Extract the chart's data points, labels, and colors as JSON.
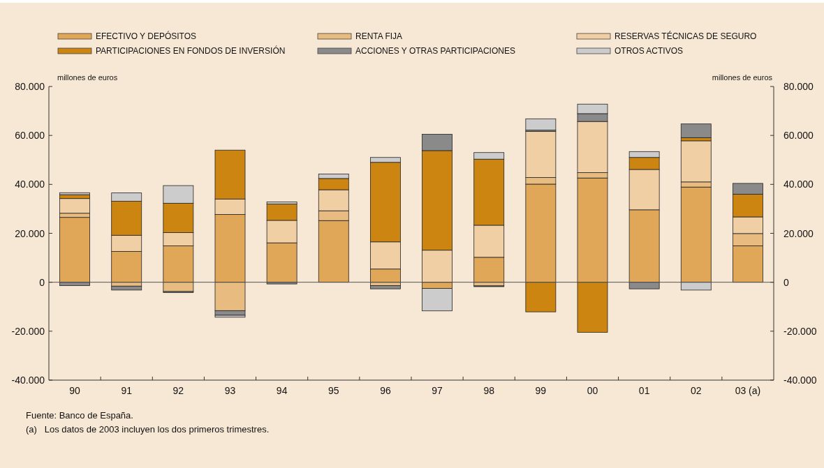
{
  "chart_data": {
    "type": "bar",
    "stacked": true,
    "categories": [
      "90",
      "91",
      "92",
      "93",
      "94",
      "95",
      "96",
      "97",
      "98",
      "99",
      "00",
      "01",
      "02",
      "03 (a)"
    ],
    "series": [
      {
        "name": "EFECTIVO Y DEPÓSITOS",
        "color": "#e0a759",
        "values": [
          26500,
          12600,
          14900,
          27700,
          16100,
          25200,
          5400,
          -2500,
          10200,
          40100,
          42600,
          29600,
          38900,
          14900
        ]
      },
      {
        "name": "RENTA FIJA",
        "color": "#e8bb80",
        "values": [
          1700,
          -1600,
          -3800,
          -11600,
          null,
          4000,
          -1400,
          null,
          -1500,
          2700,
          2200,
          null,
          2100,
          5000
        ]
      },
      {
        "name": "RESERVAS TÉCNICAS DE SEGURO",
        "color": "#efcfa3",
        "values": [
          6000,
          6600,
          5400,
          6300,
          9200,
          8600,
          11100,
          13100,
          13100,
          18800,
          20900,
          16500,
          16800,
          6800
        ]
      },
      {
        "name": "PARTICIPACIONES EN FONDOS DE INVERSIÓN",
        "color": "#cd8512",
        "values": [
          1600,
          13900,
          12000,
          20000,
          6700,
          4600,
          32500,
          40700,
          27000,
          -12100,
          -20500,
          4900,
          1300,
          9300
        ]
      },
      {
        "name": "ACCIONES Y OTRAS PARTICIPACIONES",
        "color": "#8a8a8a",
        "values": [
          -1400,
          -1600,
          -400,
          -1900,
          -700,
          null,
          -1300,
          6700,
          -300,
          600,
          3200,
          -2700,
          5600,
          4400
        ]
      },
      {
        "name": "OTROS ACTIVOS",
        "color": "#cccccc",
        "values": [
          800,
          3400,
          7200,
          -800,
          800,
          1800,
          2000,
          -9200,
          2700,
          4600,
          3900,
          2400,
          -3200,
          null
        ]
      }
    ],
    "ylim": [
      -40000,
      80000
    ],
    "yticks": [
      {
        "value": -40000,
        "label": "-40.000"
      },
      {
        "value": -20000,
        "label": "-20.000"
      },
      0,
      {
        "value": 20000,
        "label": "20.000"
      },
      {
        "value": 40000,
        "label": "40.000"
      },
      {
        "value": 60000,
        "label": "60.000"
      },
      {
        "value": 80000,
        "label": "80.000"
      }
    ],
    "y2lim": [
      -40000,
      80000
    ],
    "y2ticks": [
      {
        "value": -40000,
        "label": "-40.000"
      },
      {
        "value": -20000,
        "label": "-20.000"
      },
      0,
      {
        "value": 20000,
        "label": "20.000"
      },
      {
        "value": 40000,
        "label": "40.000"
      },
      {
        "value": 60000,
        "label": "60.000"
      },
      {
        "value": 80000,
        "label": "80.000"
      }
    ],
    "ylabel": "millones de euros",
    "y2label": "millones de euros",
    "ref_lines": [
      {
        "axis": "y",
        "value": 0,
        "color": "#555555"
      }
    ],
    "legend": "top",
    "grid": false,
    "annotations": [
      "Fuente: Banco de España.",
      "(a)   Los datos de 2003 incluyen los dos primeros trimestres."
    ]
  }
}
